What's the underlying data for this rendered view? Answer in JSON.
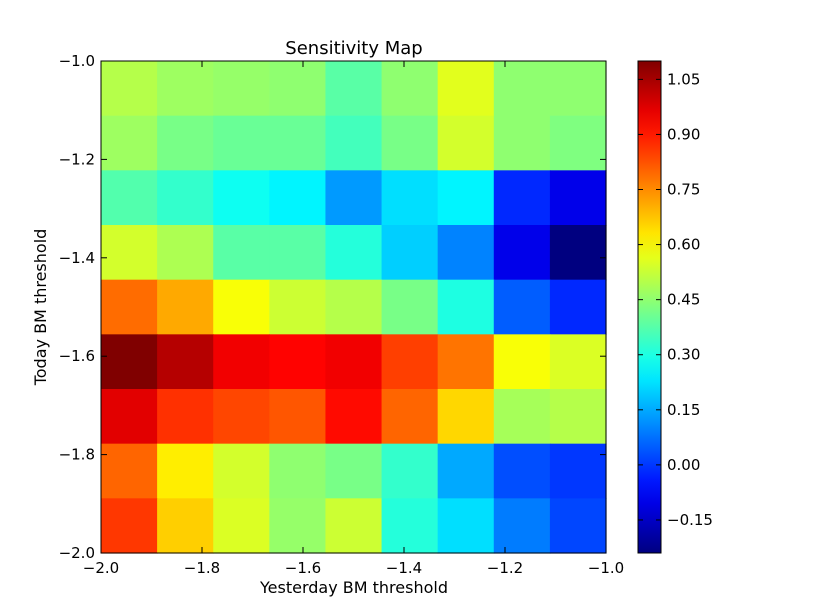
{
  "chart_data": {
    "type": "heatmap",
    "title": "Sensitivity Map",
    "xlabel": "Yesterday BM threshold",
    "ylabel": "Today BM threshold",
    "xlim": [
      -2.0,
      -1.0
    ],
    "ylim": [
      -2.0,
      -1.0
    ],
    "x_ticks": [
      -2.0,
      -1.8,
      -1.6,
      -1.4,
      -1.2,
      -1.0
    ],
    "x_tick_labels": [
      "−2.0",
      "−1.8",
      "−1.6",
      "−1.4",
      "−1.2",
      "−1.0"
    ],
    "y_ticks": [
      -1.0,
      -1.2,
      -1.4,
      -1.6,
      -1.8,
      -2.0
    ],
    "y_tick_labels": [
      "−1.0",
      "−1.2",
      "−1.4",
      "−1.6",
      "−1.8",
      "−2.0"
    ],
    "colorbar": {
      "colormap": "jet",
      "vmin": -0.24,
      "vmax": 1.1,
      "ticks": [
        1.05,
        0.9,
        0.75,
        0.6,
        0.45,
        0.3,
        0.15,
        0.0,
        -0.15
      ],
      "tick_labels": [
        "1.05",
        "0.90",
        "0.75",
        "0.60",
        "0.45",
        "0.30",
        "0.15",
        "0.00",
        "−0.15"
      ]
    },
    "grid": false,
    "values_row_order": "top-to-bottom",
    "values": [
      [
        0.5,
        0.47,
        0.46,
        0.45,
        0.38,
        0.45,
        0.56,
        0.45,
        0.45
      ],
      [
        0.47,
        0.42,
        0.4,
        0.4,
        0.35,
        0.42,
        0.54,
        0.45,
        0.43
      ],
      [
        0.37,
        0.33,
        0.28,
        0.25,
        0.13,
        0.22,
        0.25,
        -0.02,
        -0.1
      ],
      [
        0.54,
        0.49,
        0.38,
        0.38,
        0.31,
        0.2,
        0.1,
        -0.1,
        -0.24
      ],
      [
        0.79,
        0.71,
        0.59,
        0.53,
        0.5,
        0.42,
        0.3,
        0.05,
        -0.02
      ],
      [
        1.1,
        1.03,
        0.95,
        0.93,
        0.95,
        0.85,
        0.78,
        0.59,
        0.55
      ],
      [
        0.97,
        0.87,
        0.84,
        0.82,
        0.92,
        0.8,
        0.65,
        0.48,
        0.5
      ],
      [
        0.8,
        0.62,
        0.54,
        0.45,
        0.42,
        0.33,
        0.15,
        0.03,
        0.0
      ],
      [
        0.86,
        0.66,
        0.55,
        0.46,
        0.53,
        0.31,
        0.22,
        0.09,
        0.02
      ]
    ]
  }
}
